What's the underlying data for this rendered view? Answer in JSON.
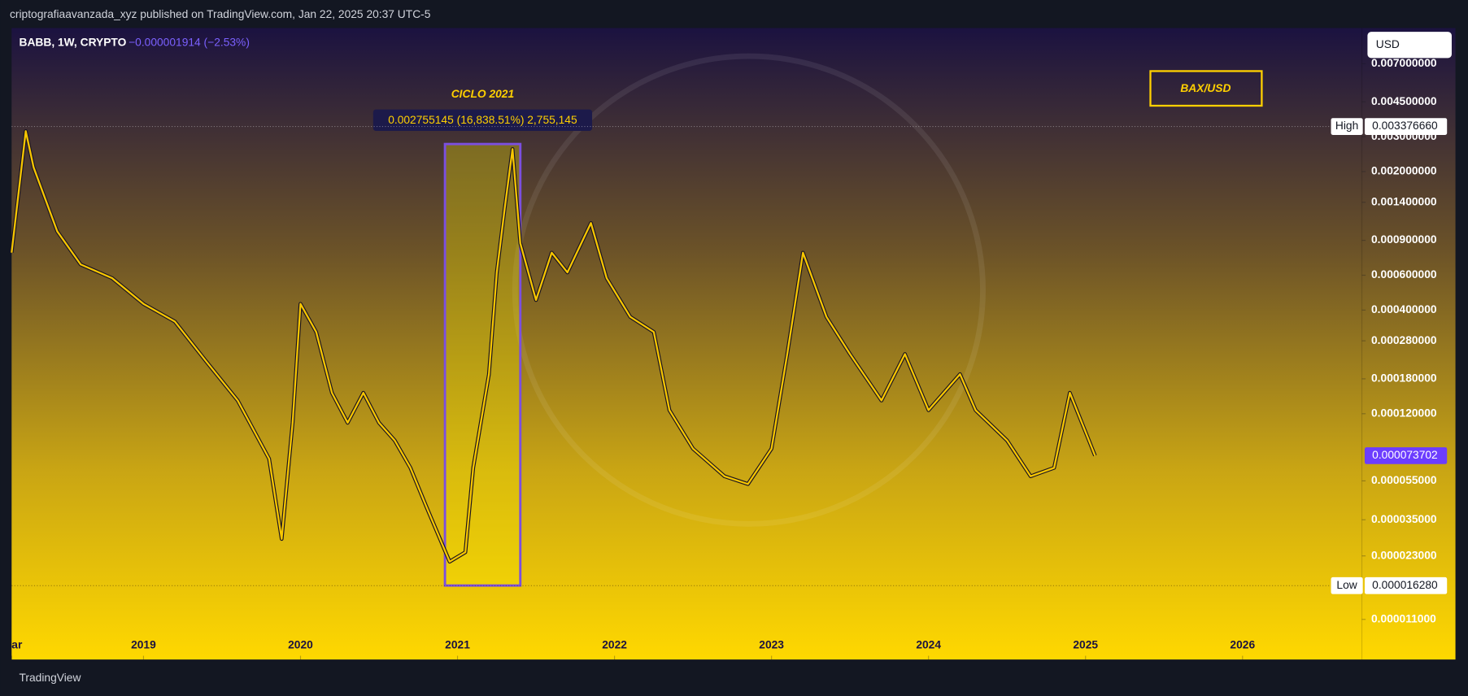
{
  "header": {
    "text": "criptografiaavanzada_xyz published on TradingView.com, Jan 22, 2025 20:37 UTC-5"
  },
  "footer": {
    "brand": "TradingView"
  },
  "chart_data": {
    "type": "line",
    "symbol": "BABB, 1W, CRYPTO",
    "change": "−0.000001914 (−2.53%)",
    "currency": "USD",
    "title": "BAX/USD",
    "log_scale": true,
    "x": [
      2018.16,
      2018.25,
      2018.3,
      2018.45,
      2018.6,
      2018.8,
      2019.0,
      2019.2,
      2019.4,
      2019.6,
      2019.8,
      2019.88,
      2019.95,
      2020.0,
      2020.1,
      2020.2,
      2020.3,
      2020.4,
      2020.5,
      2020.6,
      2020.7,
      2020.8,
      2020.95,
      2021.05,
      2021.1,
      2021.2,
      2021.25,
      2021.3,
      2021.35,
      2021.4,
      2021.5,
      2021.6,
      2021.7,
      2021.85,
      2021.95,
      2022.1,
      2022.25,
      2022.35,
      2022.5,
      2022.7,
      2022.85,
      2023.0,
      2023.1,
      2023.2,
      2023.35,
      2023.5,
      2023.7,
      2023.85,
      2024.0,
      2024.2,
      2024.3,
      2024.5,
      2024.65,
      2024.8,
      2024.9,
      2025.0,
      2025.06
    ],
    "series": [
      {
        "name": "BABB",
        "color": "#f7c600",
        "values": [
          0.00078,
          0.0032,
          0.0021,
          0.001,
          0.00068,
          0.00058,
          0.00043,
          0.00035,
          0.00022,
          0.00014,
          7.1e-05,
          2.8e-05,
          0.000108,
          0.00043,
          0.00031,
          0.000153,
          0.000108,
          0.000153,
          0.000108,
          8.8e-05,
          6.4e-05,
          4.1e-05,
          2.15e-05,
          2.4e-05,
          6.4e-05,
          0.00019,
          0.00062,
          0.0013,
          0.0026,
          0.00087,
          0.00045,
          0.00078,
          0.00062,
          0.0011,
          0.00058,
          0.00037,
          0.00031,
          0.000125,
          8e-05,
          5.8e-05,
          5.3e-05,
          8e-05,
          0.00024,
          0.00078,
          0.00037,
          0.00024,
          0.00014,
          0.00024,
          0.000125,
          0.00019,
          0.000125,
          8.8e-05,
          5.8e-05,
          6.4e-05,
          0.000153,
          9.7e-05,
          7.3702e-05
        ]
      }
    ],
    "xlim": [
      2018.16,
      2026.76
    ],
    "ylim": [
      6.9e-06,
      0.0106
    ],
    "xticks": [
      {
        "value": 2018.16,
        "label": "ar"
      },
      2019,
      2020,
      2021,
      2022,
      2023,
      2024,
      2025,
      2026
    ],
    "yticks": [
      {
        "value": 0.007,
        "label": "0.007000000"
      },
      {
        "value": 0.0045,
        "label": "0.004500000"
      },
      {
        "value": 0.003,
        "label": "0.003000000"
      },
      {
        "value": 0.002,
        "label": "0.002000000"
      },
      {
        "value": 0.0014,
        "label": "0.001400000"
      },
      {
        "value": 0.0009,
        "label": "0.000900000"
      },
      {
        "value": 0.0006,
        "label": "0.000600000"
      },
      {
        "value": 0.0004,
        "label": "0.000400000"
      },
      {
        "value": 0.00028,
        "label": "0.000280000"
      },
      {
        "value": 0.00018,
        "label": "0.000180000"
      },
      {
        "value": 0.00012,
        "label": "0.000120000"
      },
      {
        "value": 5.5e-05,
        "label": "0.000055000"
      },
      {
        "value": 3.5e-05,
        "label": "0.000035000"
      },
      {
        "value": 2.3e-05,
        "label": "0.000023000"
      },
      {
        "value": 1.1e-05,
        "label": "0.000011000"
      }
    ],
    "high": {
      "name": "High",
      "value": 0.00337666,
      "label": "0.003376660"
    },
    "low": {
      "name": "Low",
      "value": 1.628e-05,
      "label": "0.000016280"
    },
    "last": {
      "value": 7.3702e-05,
      "label": "0.000073702"
    },
    "range_box": {
      "title": "CICLO 2021",
      "label": "0.002755145 (16,838.51%) 2,755,145",
      "x": [
        2020.92,
        2021.4
      ],
      "y": [
        1.63e-05,
        0.002755145
      ]
    }
  }
}
